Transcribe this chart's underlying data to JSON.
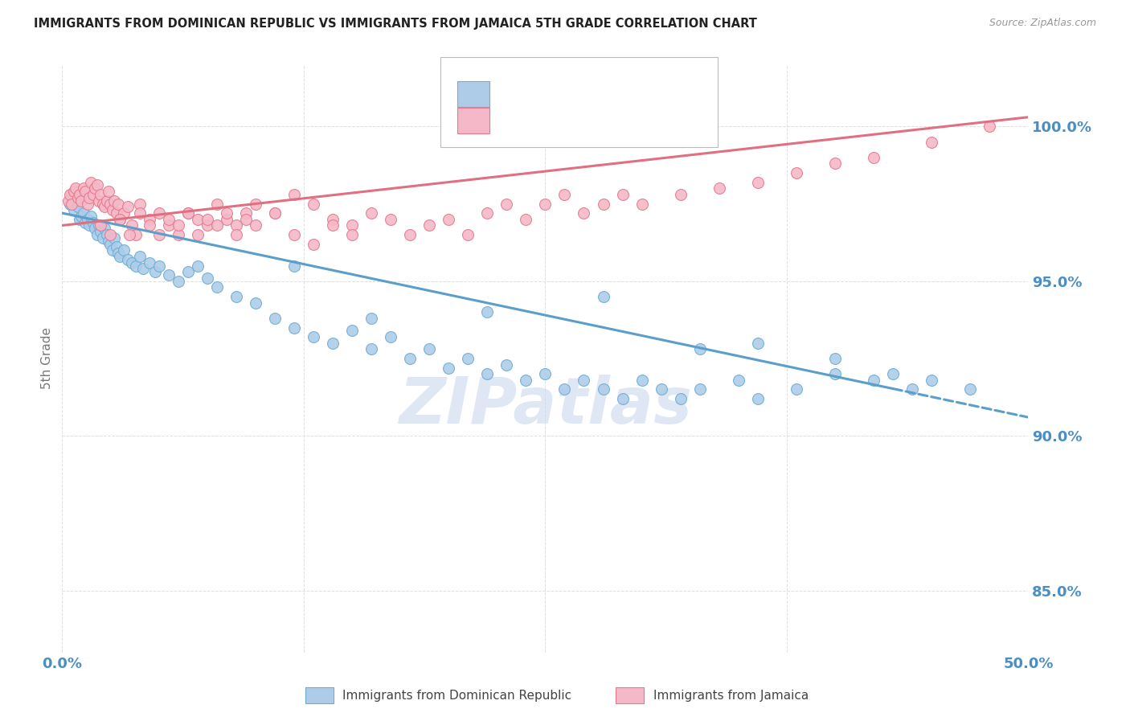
{
  "title": "IMMIGRANTS FROM DOMINICAN REPUBLIC VS IMMIGRANTS FROM JAMAICA 5TH GRADE CORRELATION CHART",
  "source": "Source: ZipAtlas.com",
  "ylabel": "5th Grade",
  "xlim": [
    0.0,
    50.0
  ],
  "ylim": [
    83.0,
    102.0
  ],
  "yticks": [
    85.0,
    90.0,
    95.0,
    100.0
  ],
  "color_blue_fill": "#aecce8",
  "color_blue_edge": "#6aaed6",
  "color_blue_line": "#5b9ec9",
  "color_pink_fill": "#f4b8c8",
  "color_pink_edge": "#e8788a",
  "color_pink_line": "#e07080",
  "color_axis_text": "#4a8fc4",
  "color_title": "#222222",
  "color_source": "#999999",
  "color_grid": "#e0e0e0",
  "color_watermark": "#ccd8ee",
  "blue_line_x0": 0.0,
  "blue_line_y0": 97.2,
  "blue_line_x1": 50.0,
  "blue_line_y1": 90.6,
  "blue_solid_end_x": 43.0,
  "pink_line_x0": 0.0,
  "pink_line_y0": 96.8,
  "pink_line_x1": 50.0,
  "pink_line_y1": 100.3,
  "blue_scatter_x": [
    0.4,
    0.5,
    0.6,
    0.7,
    0.8,
    0.9,
    1.0,
    1.1,
    1.2,
    1.3,
    1.4,
    1.5,
    1.6,
    1.7,
    1.8,
    1.9,
    2.0,
    2.1,
    2.2,
    2.3,
    2.4,
    2.5,
    2.6,
    2.7,
    2.8,
    2.9,
    3.0,
    3.2,
    3.4,
    3.6,
    3.8,
    4.0,
    4.2,
    4.5,
    4.8,
    5.0,
    5.5,
    6.0,
    6.5,
    7.0,
    7.5,
    8.0,
    9.0,
    10.0,
    11.0,
    12.0,
    13.0,
    14.0,
    15.0,
    16.0,
    17.0,
    18.0,
    19.0,
    20.0,
    21.0,
    22.0,
    23.0,
    24.0,
    25.0,
    26.0,
    27.0,
    28.0,
    29.0,
    30.0,
    31.0,
    32.0,
    33.0,
    35.0,
    36.0,
    38.0,
    40.0,
    42.0,
    44.0,
    45.0,
    47.0,
    40.0,
    43.0,
    36.0,
    33.0,
    28.0,
    22.0,
    16.0,
    12.0
  ],
  "blue_scatter_y": [
    97.5,
    97.8,
    97.3,
    97.6,
    97.4,
    97.0,
    97.1,
    97.2,
    96.9,
    97.0,
    96.8,
    97.1,
    96.9,
    96.7,
    96.5,
    96.8,
    96.6,
    96.4,
    96.7,
    96.5,
    96.3,
    96.2,
    96.0,
    96.4,
    96.1,
    95.9,
    95.8,
    96.0,
    95.7,
    95.6,
    95.5,
    95.8,
    95.4,
    95.6,
    95.3,
    95.5,
    95.2,
    95.0,
    95.3,
    95.5,
    95.1,
    94.8,
    94.5,
    94.3,
    93.8,
    93.5,
    93.2,
    93.0,
    93.4,
    92.8,
    93.2,
    92.5,
    92.8,
    92.2,
    92.5,
    92.0,
    92.3,
    91.8,
    92.0,
    91.5,
    91.8,
    91.5,
    91.2,
    91.8,
    91.5,
    91.2,
    91.5,
    91.8,
    91.2,
    91.5,
    92.0,
    91.8,
    91.5,
    91.8,
    91.5,
    92.5,
    92.0,
    93.0,
    92.8,
    94.5,
    94.0,
    93.8,
    95.5
  ],
  "pink_scatter_x": [
    0.3,
    0.4,
    0.5,
    0.6,
    0.7,
    0.8,
    0.9,
    1.0,
    1.1,
    1.2,
    1.3,
    1.4,
    1.5,
    1.6,
    1.7,
    1.8,
    1.9,
    2.0,
    2.1,
    2.2,
    2.3,
    2.4,
    2.5,
    2.6,
    2.7,
    2.8,
    2.9,
    3.0,
    3.2,
    3.4,
    3.6,
    3.8,
    4.0,
    4.5,
    5.0,
    5.5,
    6.0,
    6.5,
    7.0,
    7.5,
    8.0,
    8.5,
    9.0,
    9.5,
    10.0,
    11.0,
    12.0,
    13.0,
    14.0,
    15.0,
    16.0,
    17.0,
    18.0,
    19.0,
    20.0,
    21.0,
    22.0,
    23.0,
    24.0,
    25.0,
    26.0,
    27.0,
    28.0,
    29.0,
    30.0,
    32.0,
    34.0,
    36.0,
    38.0,
    40.0,
    42.0,
    45.0,
    48.0,
    2.0,
    2.5,
    3.0,
    3.5,
    4.0,
    4.5,
    5.0,
    5.5,
    6.0,
    6.5,
    7.0,
    7.5,
    8.0,
    8.5,
    9.0,
    9.5,
    10.0,
    11.0,
    12.0,
    13.0,
    14.0,
    15.0
  ],
  "pink_scatter_y": [
    97.6,
    97.8,
    97.5,
    97.9,
    98.0,
    97.7,
    97.8,
    97.6,
    98.0,
    97.9,
    97.5,
    97.7,
    98.2,
    97.8,
    98.0,
    98.1,
    97.6,
    97.8,
    97.5,
    97.4,
    97.6,
    97.9,
    97.5,
    97.3,
    97.6,
    97.2,
    97.5,
    97.0,
    97.2,
    97.4,
    96.8,
    96.5,
    97.5,
    97.0,
    97.2,
    96.8,
    96.5,
    97.2,
    97.0,
    96.8,
    97.5,
    97.0,
    96.8,
    97.2,
    97.5,
    97.2,
    97.8,
    97.5,
    97.0,
    96.8,
    97.2,
    97.0,
    96.5,
    96.8,
    97.0,
    96.5,
    97.2,
    97.5,
    97.0,
    97.5,
    97.8,
    97.2,
    97.5,
    97.8,
    97.5,
    97.8,
    98.0,
    98.2,
    98.5,
    98.8,
    99.0,
    99.5,
    100.0,
    96.8,
    96.5,
    97.0,
    96.5,
    97.2,
    96.8,
    96.5,
    97.0,
    96.8,
    97.2,
    96.5,
    97.0,
    96.8,
    97.2,
    96.5,
    97.0,
    96.8,
    97.2,
    96.5,
    96.2,
    96.8,
    96.5
  ],
  "legend_label1": "Immigrants from Dominican Republic",
  "legend_label2": "Immigrants from Jamaica"
}
